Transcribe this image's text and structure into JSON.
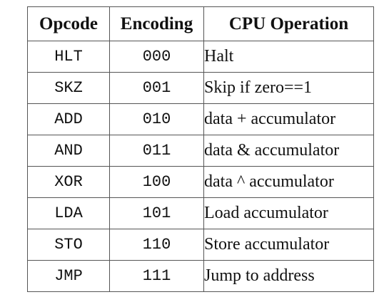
{
  "table": {
    "headers": [
      "Opcode",
      "Encoding",
      "CPU Operation"
    ],
    "rows": [
      {
        "opcode": "HLT",
        "encoding": "000",
        "operation": "Halt"
      },
      {
        "opcode": "SKZ",
        "encoding": "001",
        "operation": "Skip if zero==1"
      },
      {
        "opcode": "ADD",
        "encoding": "010",
        "operation": "data + accumulator"
      },
      {
        "opcode": "AND",
        "encoding": "011",
        "operation": "data & accumulator"
      },
      {
        "opcode": "XOR",
        "encoding": "100",
        "operation": "data ^ accumulator"
      },
      {
        "opcode": "LDA",
        "encoding": "101",
        "operation": "Load accumulator"
      },
      {
        "opcode": "STO",
        "encoding": "110",
        "operation": "Store accumulator"
      },
      {
        "opcode": "JMP",
        "encoding": "111",
        "operation": "Jump to address"
      }
    ]
  }
}
